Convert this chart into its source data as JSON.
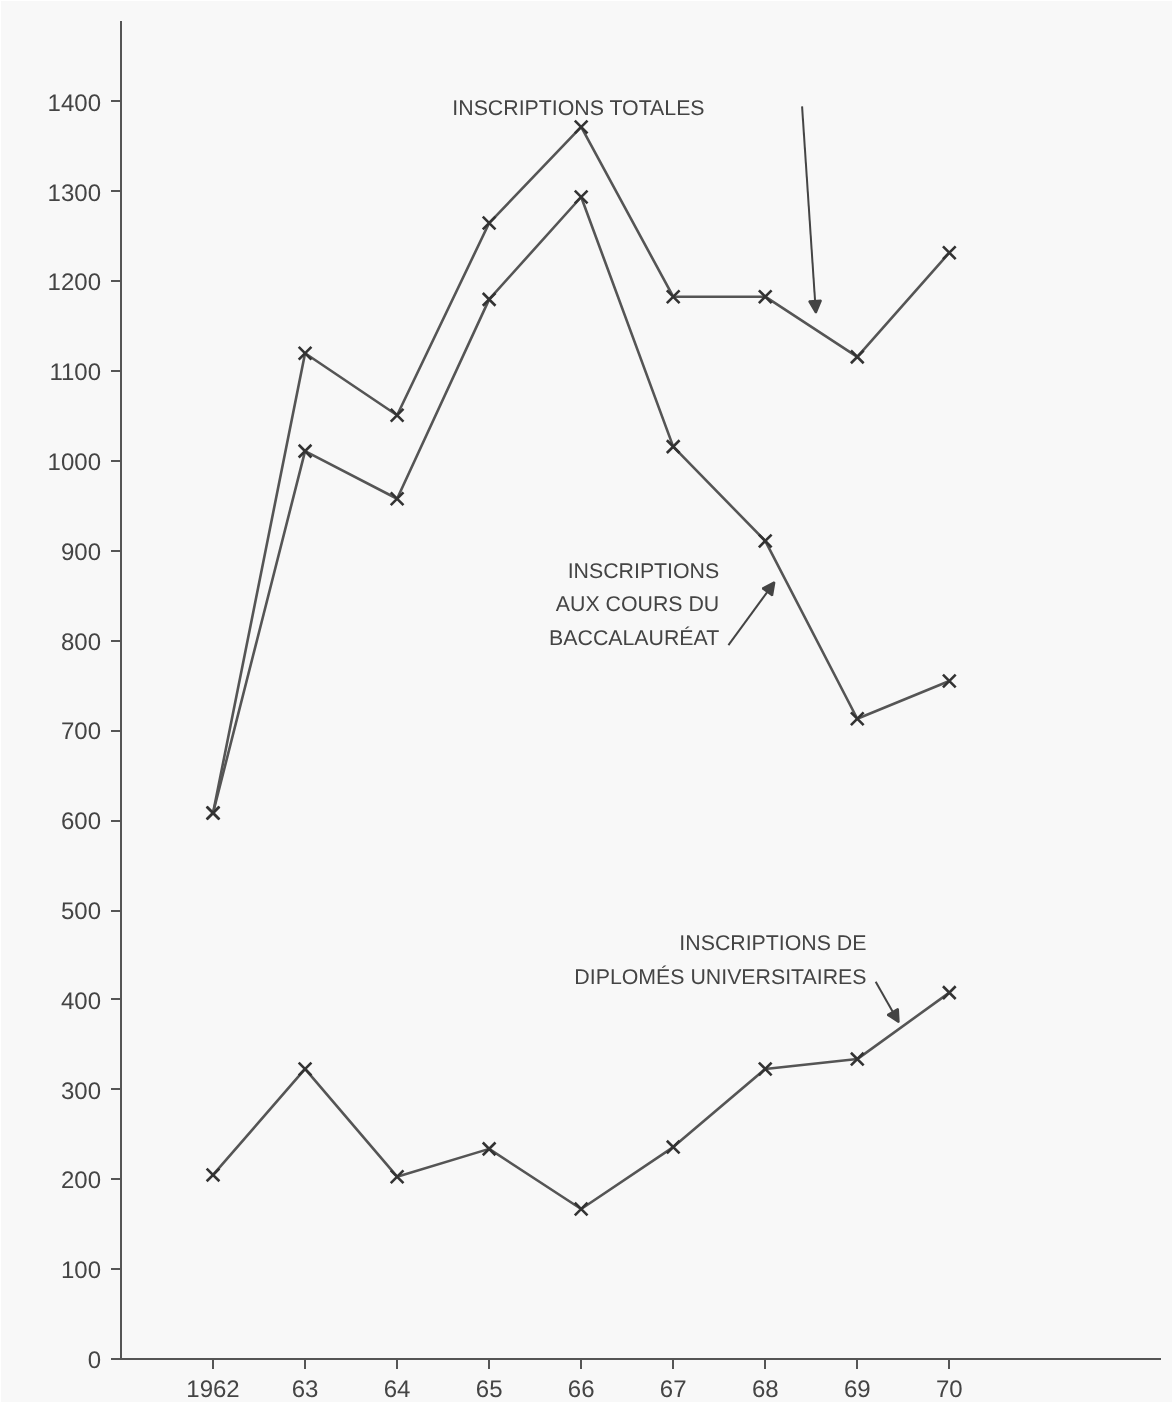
{
  "chart_data": {
    "type": "line",
    "x": [
      1962,
      1963,
      1964,
      1965,
      1966,
      1967,
      1968,
      1969,
      1970
    ],
    "series": [
      {
        "name": "INSCRIPTIONS TOTALES",
        "color": "#555555",
        "values": [
          608,
          1120,
          1051,
          1265,
          1372,
          1183,
          1183,
          1116,
          1232
        ]
      },
      {
        "name": "INSCRIPTIONS\nAUX COURS DU\nBACCALAURÉAT",
        "color": "#555555",
        "values": [
          608,
          1011,
          958,
          1180,
          1294,
          1016,
          911,
          713,
          755
        ]
      },
      {
        "name": "INSCRIPTIONS DE\nDIPLOMÉS UNIVERSITAIRES",
        "color": "#555555",
        "values": [
          205,
          323,
          203,
          234,
          167,
          236,
          323,
          334,
          408
        ]
      }
    ],
    "xlim": [
      1961,
      1972.3
    ],
    "xticks": [
      {
        "value": 1962,
        "label": "1962"
      },
      {
        "value": 1963,
        "label": "63"
      },
      {
        "value": 1964,
        "label": "64"
      },
      {
        "value": 1965,
        "label": "65"
      },
      {
        "value": 1966,
        "label": "66"
      },
      {
        "value": 1967,
        "label": "67"
      },
      {
        "value": 1968,
        "label": "68"
      },
      {
        "value": 1969,
        "label": "69"
      },
      {
        "value": 1970,
        "label": "70"
      }
    ],
    "ylim": [
      0,
      1490
    ],
    "yticks": [
      0,
      100,
      200,
      300,
      400,
      500,
      600,
      700,
      800,
      900,
      1000,
      1100,
      1200,
      1300,
      1400
    ],
    "marker": "cross",
    "line_style": "solid",
    "grid": false
  }
}
